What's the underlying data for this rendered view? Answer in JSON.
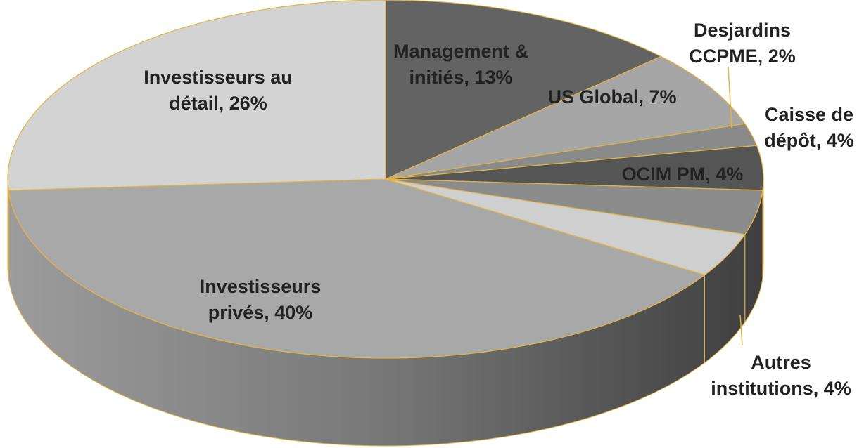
{
  "chart_data": {
    "type": "pie",
    "labels": [
      [
        "Management &",
        "initiés, 13%"
      ],
      [
        "US Global, 7%"
      ],
      [
        "Desjardins",
        "CCPME, 2%"
      ],
      [
        "Caisse de",
        "dépôt, 4%"
      ],
      [
        "OCIM PM, 4%"
      ],
      [
        "Autres",
        "institutions, 4%"
      ],
      [
        "Investisseurs",
        "privés, 40%"
      ],
      [
        "Investisseurs au",
        "détail, 26%"
      ]
    ],
    "values": [
      13,
      7,
      2,
      4,
      4,
      4,
      40,
      26
    ],
    "colors": [
      "#636363",
      "#a6a6a6",
      "#8a8a8a",
      "#555555",
      "#8c8c8c",
      "#cfcfcf",
      "#a8a8a8",
      "#d3d3d3"
    ],
    "edge_color": "#e3b441"
  }
}
